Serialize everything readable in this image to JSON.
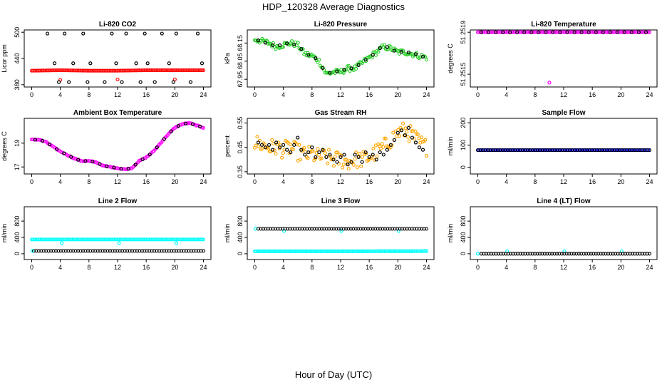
{
  "page": {
    "title": "HDP_120328  Average Diagnostics",
    "xlabel": "Hour of Day (UTC)"
  },
  "colors": {
    "black": "#000000",
    "red": "#ff0000",
    "green": "#22cc22",
    "orange": "#ffa500",
    "magenta": "#ff00ff",
    "blue": "#0000ff",
    "cyan": "#00ffff"
  },
  "chart_data": [
    {
      "id": "li820-co2",
      "type": "scatter",
      "title": "Li-820 CO2",
      "ylabel": "Licor ppm",
      "xlim": [
        0,
        24
      ],
      "ylim": [
        380,
        500
      ],
      "xticks": [
        0,
        4,
        8,
        12,
        16,
        20,
        24
      ],
      "yticks": [
        380,
        440,
        500
      ],
      "series": [
        {
          "name": "co2-dense",
          "style": "dense",
          "color": "#ff0000",
          "hmin": 0,
          "hmax": 24,
          "vals": [
            412,
            413,
            412,
            412,
            413,
            413,
            413
          ]
        },
        {
          "name": "co2-outliers",
          "style": "points",
          "color": "#ff0000",
          "x": [
            4,
            12,
            20
          ],
          "y": [
            391,
            392,
            392
          ]
        },
        {
          "name": "co2-hourly",
          "style": "points",
          "color": "#000000",
          "x": [
            2.2,
            3.2,
            3.8,
            4.6,
            5.2,
            5.8,
            7.2,
            7.8,
            8.2,
            10.2,
            11.2,
            11.8,
            12.6,
            13.2,
            14.6,
            15.2,
            15.8,
            16.2,
            17.2,
            18.2,
            19.2,
            19.8,
            20.2,
            22.2,
            23.2,
            23.8
          ],
          "y": [
            497,
            429,
            386,
            497,
            386,
            429,
            497,
            386,
            429,
            386,
            497,
            429,
            386,
            497,
            429,
            386,
            497,
            429,
            386,
            497,
            429,
            386,
            497,
            386,
            497,
            429
          ]
        }
      ]
    },
    {
      "id": "li820-pressure",
      "type": "scatter",
      "title": "Li-820 Pressure",
      "ylabel": "kPa",
      "xlim": [
        0,
        24
      ],
      "ylim": [
        67.92,
        68.21
      ],
      "xticks": [
        0,
        4,
        8,
        12,
        16,
        20,
        24
      ],
      "yticks": [
        67.95,
        68.05,
        68.15
      ],
      "series": [
        {
          "name": "pressure-dense",
          "style": "dense",
          "color": "#22cc22",
          "hmin": 0,
          "hmax": 24,
          "spread": 0.015,
          "vals": [
            68.17,
            68.16,
            68.15,
            68.13,
            68.14,
            68.15,
            68.14,
            68.09,
            68.08,
            68.05,
            67.98,
            67.99,
            67.99,
            68.01,
            68.01,
            68.04,
            68.07,
            68.1,
            68.13,
            68.12,
            68.1,
            68.1,
            68.09,
            68.08,
            68.07
          ]
        },
        {
          "name": "pressure-hourly",
          "style": "points",
          "color": "#000000",
          "x": [
            0.5,
            1.5,
            2.5,
            3.5,
            4.5,
            5.5,
            6.5,
            7.5,
            8.5,
            9.5,
            10.5,
            11.5,
            12.5,
            13.5,
            14.5,
            15.5,
            16.5,
            17.5,
            18.5,
            19.5,
            20.5,
            21.5,
            22.5,
            23.5
          ],
          "y": [
            68.165,
            68.152,
            68.138,
            68.138,
            68.148,
            68.142,
            68.118,
            68.085,
            68.066,
            68.012,
            67.986,
            67.994,
            68.003,
            68.011,
            68.028,
            68.058,
            68.085,
            68.122,
            68.128,
            68.108,
            68.102,
            68.098,
            68.089,
            68.075
          ]
        }
      ]
    },
    {
      "id": "li820-temperature",
      "type": "scatter",
      "title": "Li-820 Temperature",
      "ylabel": "degrees C",
      "xlim": [
        0,
        24
      ],
      "ylim": [
        51.2514,
        51.2519
      ],
      "xticks": [
        0,
        4,
        8,
        12,
        16,
        20,
        24
      ],
      "yticks": [
        51.2515,
        51.2519
      ],
      "ytick_labels": [
        "51.2515",
        "51.2519"
      ],
      "series": [
        {
          "name": "temp-dense",
          "style": "dense",
          "color": "#ff00ff",
          "hmin": 0,
          "hmax": 24,
          "vals": [
            51.2519,
            51.2519
          ]
        },
        {
          "name": "temp-outlier",
          "style": "points",
          "color": "#ff00ff",
          "x": [
            10
          ],
          "y": [
            51.25142
          ]
        },
        {
          "name": "temp-hourly",
          "style": "points",
          "color": "#000000",
          "x": [
            0.5,
            1.5,
            2.5,
            3.5,
            4.5,
            5.5,
            6.5,
            7.5,
            8.5,
            9.5,
            10.5,
            11.5,
            12.5,
            13.5,
            14.5,
            15.5,
            16.5,
            17.5,
            18.5,
            19.5,
            20.5,
            21.5,
            22.5,
            23.5
          ],
          "y": [
            51.2519,
            51.2519,
            51.2519,
            51.2519,
            51.2519,
            51.2519,
            51.2519,
            51.2519,
            51.2519,
            51.2519,
            51.2519,
            51.2519,
            51.2519,
            51.2519,
            51.2519,
            51.2519,
            51.2519,
            51.2519,
            51.2519,
            51.2519,
            51.2519,
            51.2519,
            51.2519,
            51.2519
          ]
        }
      ]
    },
    {
      "id": "ambient-box-temperature",
      "type": "line",
      "title": "Ambient Box Temperature",
      "ylabel": "degrees C",
      "xlim": [
        0,
        24
      ],
      "ylim": [
        16.6,
        20.9
      ],
      "xticks": [
        0,
        4,
        8,
        12,
        16,
        20,
        24
      ],
      "yticks": [
        17,
        19
      ],
      "series": [
        {
          "name": "ambient-dense",
          "style": "dense",
          "color": "#ff00ff",
          "hmin": 0,
          "hmax": 24,
          "spread": 0.03,
          "vals": [
            19.3,
            19.3,
            19.1,
            18.7,
            18.3,
            18.0,
            17.7,
            17.5,
            17.5,
            17.4,
            17.1,
            17.0,
            16.9,
            16.8,
            16.9,
            17.5,
            17.8,
            18.3,
            19.0,
            19.7,
            20.3,
            20.6,
            20.7,
            20.5,
            20.3
          ]
        },
        {
          "name": "ambient-hourly",
          "style": "points",
          "color": "#000000",
          "x": [
            0.5,
            1.5,
            2.5,
            3.5,
            4.5,
            5.5,
            6.5,
            7.5,
            8.5,
            9.5,
            10.5,
            11.5,
            12.5,
            13.5,
            14.5,
            15.5,
            16.5,
            17.5,
            18.5,
            19.5,
            20.5,
            21.5,
            22.5,
            23.5
          ],
          "y": [
            19.3,
            19.2,
            18.9,
            18.5,
            18.15,
            17.85,
            17.6,
            17.5,
            17.45,
            17.25,
            17.05,
            16.95,
            16.85,
            16.85,
            17.2,
            17.65,
            18.05,
            18.65,
            19.35,
            20.0,
            20.45,
            20.65,
            20.6,
            20.4
          ]
        }
      ]
    },
    {
      "id": "gas-stream-rh",
      "type": "scatter",
      "title": "Gas Stream RH",
      "ylabel": "percent",
      "xlim": [
        0,
        24
      ],
      "ylim": [
        0.35,
        0.56
      ],
      "xticks": [
        0,
        4,
        8,
        12,
        16,
        20,
        24
      ],
      "yticks": [
        0.35,
        0.45,
        0.55
      ],
      "series": [
        {
          "name": "rh-dense",
          "style": "dense",
          "color": "#ffa500",
          "hmin": 0,
          "hmax": 24,
          "spread": 0.035,
          "vals": [
            0.47,
            0.46,
            0.45,
            0.45,
            0.44,
            0.45,
            0.43,
            0.42,
            0.42,
            0.41,
            0.41,
            0.4,
            0.4,
            0.39,
            0.4,
            0.4,
            0.41,
            0.43,
            0.45,
            0.48,
            0.51,
            0.52,
            0.5,
            0.47,
            0.45
          ]
        },
        {
          "name": "rh-hourly",
          "style": "points",
          "color": "#000000",
          "x": [
            0.5,
            1.0,
            1.5,
            2.0,
            2.5,
            3.0,
            3.5,
            4.0,
            4.5,
            5.0,
            5.5,
            6.0,
            6.5,
            7.0,
            7.5,
            8.0,
            8.5,
            9.0,
            9.5,
            10.0,
            10.5,
            11.0,
            11.5,
            12.0,
            12.5,
            13.0,
            13.5,
            14.0,
            14.5,
            15.0,
            15.5,
            16.0,
            16.5,
            17.0,
            17.5,
            18.0,
            18.5,
            19.0,
            19.5,
            20.0,
            20.5,
            21.0,
            21.5,
            22.0,
            22.5,
            23.0,
            23.5
          ],
          "y": [
            0.47,
            0.46,
            0.45,
            0.46,
            0.44,
            0.47,
            0.45,
            0.46,
            0.44,
            0.43,
            0.46,
            0.49,
            0.44,
            0.42,
            0.43,
            0.45,
            0.41,
            0.43,
            0.44,
            0.41,
            0.42,
            0.4,
            0.39,
            0.41,
            0.42,
            0.38,
            0.39,
            0.42,
            0.41,
            0.39,
            0.43,
            0.41,
            0.42,
            0.4,
            0.43,
            0.42,
            0.44,
            0.46,
            0.48,
            0.51,
            0.52,
            0.5,
            0.53,
            0.49,
            0.47,
            0.45,
            0.44
          ]
        }
      ]
    },
    {
      "id": "sample-flow",
      "type": "scatter",
      "title": "Sample Flow",
      "ylabel": "ml/min",
      "xlim": [
        0,
        24
      ],
      "ylim": [
        -20,
        210
      ],
      "xticks": [
        0,
        4,
        8,
        12,
        16,
        20,
        24
      ],
      "yticks": [
        0,
        100,
        200
      ],
      "series": [
        {
          "name": "sample-dense",
          "style": "dense",
          "color": "#0000ff",
          "hmin": 0,
          "hmax": 24,
          "vals": [
            77,
            77,
            77
          ]
        },
        {
          "name": "sample-hourly",
          "style": "band",
          "color": "#000000",
          "hmin": 0,
          "hmax": 24,
          "vals": [
            77,
            77
          ]
        }
      ]
    },
    {
      "id": "line-2-flow",
      "type": "scatter",
      "title": "Line 2 Flow",
      "ylabel": "ml/min",
      "xlim": [
        0,
        24
      ],
      "ylim": [
        -90,
        1100
      ],
      "xticks": [
        0,
        4,
        8,
        12,
        16,
        20,
        24
      ],
      "yticks": [
        0,
        400,
        800
      ],
      "series": [
        {
          "name": "line2-cyan-band",
          "style": "dense",
          "color": "#00ffff",
          "hmin": 0,
          "hmax": 24,
          "vals": [
            350,
            350,
            350
          ]
        },
        {
          "name": "line2-cyan-dips",
          "style": "points",
          "color": "#00ffff",
          "x": [
            4.2,
            12.2,
            20.2
          ],
          "y": [
            260,
            260,
            260
          ]
        },
        {
          "name": "line2-black",
          "style": "band",
          "color": "#000000",
          "hmin": 0.3,
          "hmax": 24,
          "vals": [
            70,
            70
          ]
        },
        {
          "name": "line2-cyan-low",
          "style": "points",
          "color": "#00ffff",
          "x": [
            0.1
          ],
          "y": [
            70
          ]
        }
      ]
    },
    {
      "id": "line-3-flow",
      "type": "scatter",
      "title": "Line 3 Flow",
      "ylabel": "ml/min",
      "xlim": [
        0,
        24
      ],
      "ylim": [
        -90,
        1100
      ],
      "xticks": [
        0,
        4,
        8,
        12,
        16,
        20,
        24
      ],
      "yticks": [
        0,
        400,
        800
      ],
      "series": [
        {
          "name": "line3-cyan-low",
          "style": "dense",
          "color": "#00ffff",
          "hmin": 0,
          "hmax": 24,
          "vals": [
            60,
            60,
            60,
            62,
            64
          ]
        },
        {
          "name": "line3-cyan-high",
          "style": "points",
          "color": "#00ffff",
          "x": [
            0.1,
            4.1,
            12.1,
            20.1
          ],
          "y": [
            610,
            560,
            560,
            560
          ]
        },
        {
          "name": "line3-black",
          "style": "band",
          "color": "#000000",
          "hmin": 0.5,
          "hmax": 24,
          "vals": [
            610,
            610
          ]
        }
      ]
    },
    {
      "id": "line-4-flow",
      "type": "scatter",
      "title": "Line 4 (LT) Flow",
      "ylabel": "ml/min",
      "xlim": [
        0,
        24
      ],
      "ylim": [
        -90,
        1100
      ],
      "xticks": [
        0,
        4,
        8,
        12,
        16,
        20,
        24
      ],
      "yticks": [
        0,
        400,
        800
      ],
      "series": [
        {
          "name": "line4-cyan",
          "style": "points",
          "color": "#00ffff",
          "x": [
            0,
            4.1,
            12.1,
            20.1
          ],
          "y": [
            0,
            60,
            60,
            60
          ]
        },
        {
          "name": "line4-black",
          "style": "band",
          "color": "#000000",
          "hmin": 0.5,
          "hmax": 24,
          "vals": [
            0,
            0
          ]
        }
      ]
    }
  ]
}
